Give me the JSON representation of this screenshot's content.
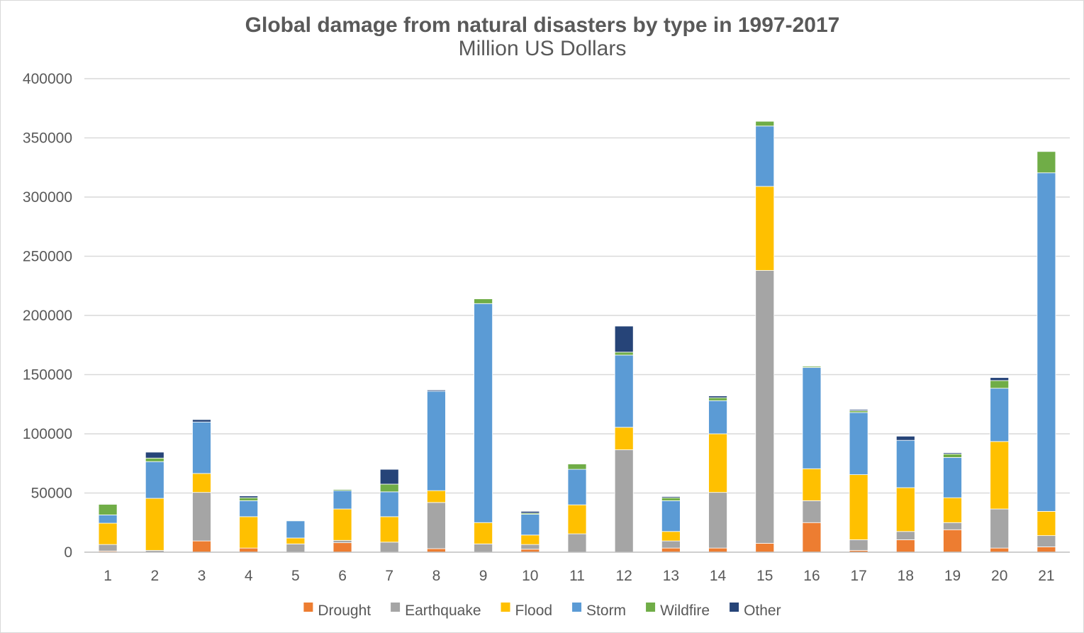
{
  "chart_data": {
    "type": "bar",
    "stacked": true,
    "title": "Global damage from natural disasters by type in 1997-2017",
    "subtitle": "Million US Dollars",
    "xlabel": "",
    "ylabel": "",
    "ylim": [
      0,
      400000
    ],
    "yticks": [
      0,
      50000,
      100000,
      150000,
      200000,
      250000,
      300000,
      350000,
      400000
    ],
    "ytick_labels": [
      "0",
      "50000",
      "100000",
      "150000",
      "200000",
      "250000",
      "300000",
      "350000",
      "400000"
    ],
    "grid": "horizontal",
    "legend_position": "bottom",
    "categories": [
      "1",
      "2",
      "3",
      "4",
      "5",
      "6",
      "7",
      "8",
      "9",
      "10",
      "11",
      "12",
      "13",
      "14",
      "15",
      "16",
      "17",
      "18",
      "19",
      "20",
      "21"
    ],
    "series": [
      {
        "name": "Drought",
        "color": "#ED7D31",
        "values": [
          1000,
          0,
          9500,
          3500,
          0,
          8000,
          0,
          3000,
          0,
          2500,
          0,
          0,
          3500,
          3500,
          7500,
          25000,
          1500,
          10500,
          19000,
          3500,
          4500
        ]
      },
      {
        "name": "Earthquake",
        "color": "#A5A5A5",
        "values": [
          5500,
          1500,
          41000,
          0,
          7000,
          2000,
          8500,
          39000,
          7000,
          4000,
          15500,
          86500,
          6000,
          47000,
          230500,
          18500,
          9000,
          7000,
          6000,
          33000,
          9500
        ]
      },
      {
        "name": "Flood",
        "color": "#FFC000",
        "values": [
          18000,
          44000,
          16000,
          26500,
          5000,
          26500,
          21500,
          10000,
          18000,
          8000,
          24500,
          19000,
          8000,
          49500,
          71000,
          27000,
          55000,
          37000,
          21000,
          57000,
          20500
        ]
      },
      {
        "name": "Storm",
        "color": "#5B9BD5",
        "values": [
          7000,
          31000,
          43500,
          13500,
          14500,
          15500,
          21000,
          84000,
          185000,
          17500,
          30000,
          61000,
          26000,
          28000,
          51000,
          85500,
          52500,
          40000,
          34000,
          45000,
          286000
        ]
      },
      {
        "name": "Wildfire",
        "color": "#70AD47",
        "values": [
          9000,
          3000,
          0,
          2500,
          500,
          1000,
          6500,
          0,
          4000,
          1000,
          4500,
          2500,
          2500,
          2500,
          4000,
          1000,
          1500,
          0,
          3000,
          6500,
          18000
        ]
      },
      {
        "name": "Other",
        "color": "#264478",
        "values": [
          500,
          5000,
          2000,
          1500,
          0,
          500,
          12500,
          1000,
          0,
          1500,
          0,
          22000,
          1000,
          1500,
          0,
          0,
          1000,
          3500,
          1000,
          2500,
          500
        ]
      }
    ]
  }
}
